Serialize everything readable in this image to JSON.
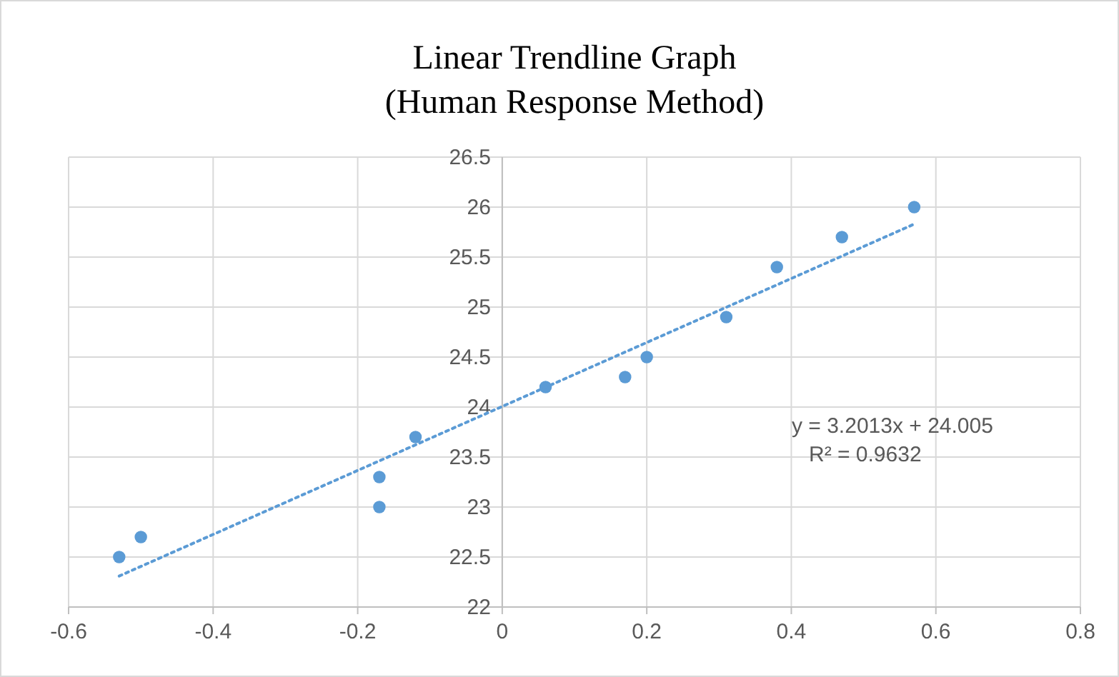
{
  "chart_data": {
    "type": "scatter",
    "title": "Linear Trendline  Graph\n(Human Response Method)",
    "series": [
      {
        "color": "#5b9bd5",
        "x": [
          -0.53,
          -0.5,
          -0.17,
          -0.17,
          -0.12,
          0.06,
          0.17,
          0.2,
          0.31,
          0.38,
          0.47,
          0.57
        ],
        "values": [
          22.5,
          22.7,
          23.3,
          23.0,
          23.7,
          24.2,
          24.3,
          24.5,
          24.9,
          25.4,
          25.7,
          26.0
        ],
        "marker": "circle"
      },
      {
        "type": "line",
        "color": "#5b9bd5",
        "x": [
          -0.53,
          0.57
        ],
        "values": [
          22.31,
          25.83
        ],
        "line_style": "dotted",
        "marker": "none"
      }
    ],
    "annotations": [
      "y = 3.2013x + 24.005",
      "R² = 0.9632"
    ],
    "xlim": [
      -0.6,
      0.8
    ],
    "xticks": [
      -0.6,
      -0.4,
      -0.2,
      0,
      0.2,
      0.4,
      0.6,
      0.8
    ],
    "ylim": [
      22,
      26.5
    ],
    "yticks": [
      22,
      22.5,
      23,
      23.5,
      24,
      24.5,
      25,
      25.5,
      26,
      26.5
    ],
    "grid": true
  }
}
